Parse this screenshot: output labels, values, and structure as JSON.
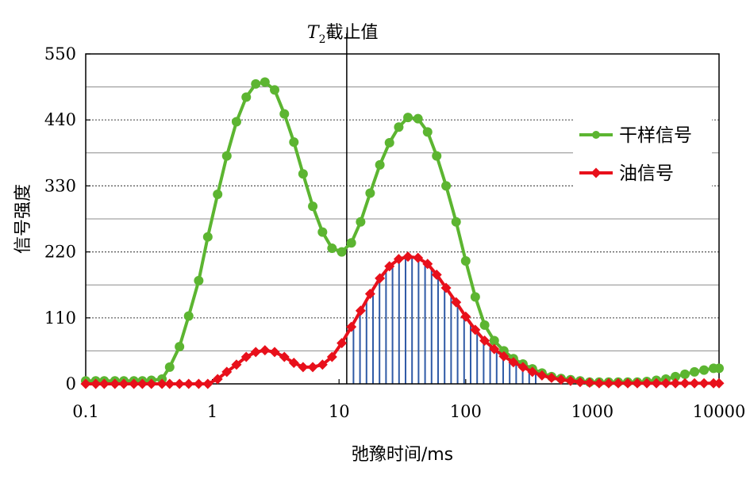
{
  "chart_data": {
    "type": "line",
    "x_scale": "log",
    "xlabel": "弛豫时间/ms",
    "ylabel": "信号强度",
    "xlim": [
      0.1,
      10000
    ],
    "ylim": [
      0,
      550
    ],
    "x_tick_labels": [
      "0.1",
      "1",
      "10",
      "100",
      "1000",
      "10000"
    ],
    "x_ticks": [
      0.1,
      1,
      10,
      100,
      1000,
      10000
    ],
    "y_tick_labels": [
      "0",
      "110",
      "220",
      "330",
      "440",
      "550"
    ],
    "y_ticks": [
      0,
      110,
      220,
      330,
      440,
      550
    ],
    "grid": "horizontal dotted at labeled ticks, solid gray at midpoints",
    "legend_position": "right",
    "cutoff": {
      "label_italic": "T",
      "label_subscript": "2",
      "label_text": "截止值",
      "x": 11.5
    },
    "shaded_region": "vertical blue hatch under 油信号 curve from cutoff to ~400 ms",
    "series": [
      {
        "name": "干样信号",
        "color": "#5cb531",
        "marker": "circle",
        "x": [
          0.1,
          0.12,
          0.14,
          0.17,
          0.2,
          0.24,
          0.28,
          0.33,
          0.4,
          0.46,
          0.55,
          0.65,
          0.78,
          0.92,
          1.1,
          1.3,
          1.55,
          1.85,
          2.2,
          2.6,
          3.1,
          3.7,
          4.4,
          5.2,
          6.2,
          7.4,
          8.8,
          10.5,
          12.5,
          14.8,
          17.6,
          21,
          25,
          29.6,
          35,
          42,
          50,
          59,
          70,
          84,
          100,
          119,
          141,
          168,
          200,
          238,
          283,
          336,
          400,
          476,
          566,
          673,
          800,
          951,
          1131,
          1345,
          1600,
          1902,
          2262,
          2690,
          3199,
          3804,
          4524,
          5380,
          6398,
          7609,
          9049,
          10000
        ],
        "y": [
          5,
          5,
          5,
          5,
          5,
          5,
          5,
          6,
          8,
          28,
          62,
          113,
          172,
          245,
          316,
          380,
          437,
          478,
          500,
          503,
          490,
          450,
          403,
          350,
          296,
          253,
          226,
          220,
          235,
          270,
          318,
          365,
          402,
          428,
          444,
          442,
          420,
          380,
          330,
          270,
          205,
          145,
          98,
          72,
          55,
          42,
          33,
          25,
          18,
          12,
          9,
          7,
          5,
          3,
          3,
          3,
          3,
          3,
          3,
          4,
          6,
          8,
          12,
          16,
          20,
          23,
          26,
          26
        ]
      },
      {
        "name": "油信号",
        "color": "#e8101b",
        "marker": "diamond",
        "x": [
          0.1,
          0.12,
          0.14,
          0.17,
          0.2,
          0.24,
          0.28,
          0.33,
          0.4,
          0.46,
          0.55,
          0.65,
          0.78,
          0.92,
          1.1,
          1.3,
          1.55,
          1.85,
          2.2,
          2.6,
          3.1,
          3.7,
          4.4,
          5.2,
          6.2,
          7.4,
          8.8,
          10.5,
          12.5,
          14.8,
          17.6,
          21,
          25,
          29.6,
          35,
          42,
          50,
          59,
          70,
          84,
          100,
          119,
          141,
          168,
          200,
          238,
          283,
          336,
          400,
          476,
          566,
          673,
          800,
          951,
          1131,
          1345,
          1600,
          1902,
          2262,
          2690,
          3199,
          3804,
          4524,
          5380,
          6398,
          7609,
          9049,
          10000
        ],
        "y": [
          0,
          0,
          0,
          0,
          0,
          0,
          0,
          0,
          0,
          0,
          0,
          0,
          0,
          0,
          8,
          20,
          32,
          45,
          53,
          56,
          53,
          45,
          35,
          28,
          28,
          32,
          45,
          68,
          95,
          122,
          150,
          176,
          196,
          208,
          212,
          210,
          200,
          182,
          160,
          136,
          112,
          90,
          72,
          58,
          46,
          36,
          28,
          20,
          14,
          10,
          7,
          5,
          3,
          2,
          1,
          1,
          1,
          1,
          1,
          1,
          1,
          1,
          1,
          1,
          1,
          1,
          1,
          1
        ]
      }
    ]
  }
}
